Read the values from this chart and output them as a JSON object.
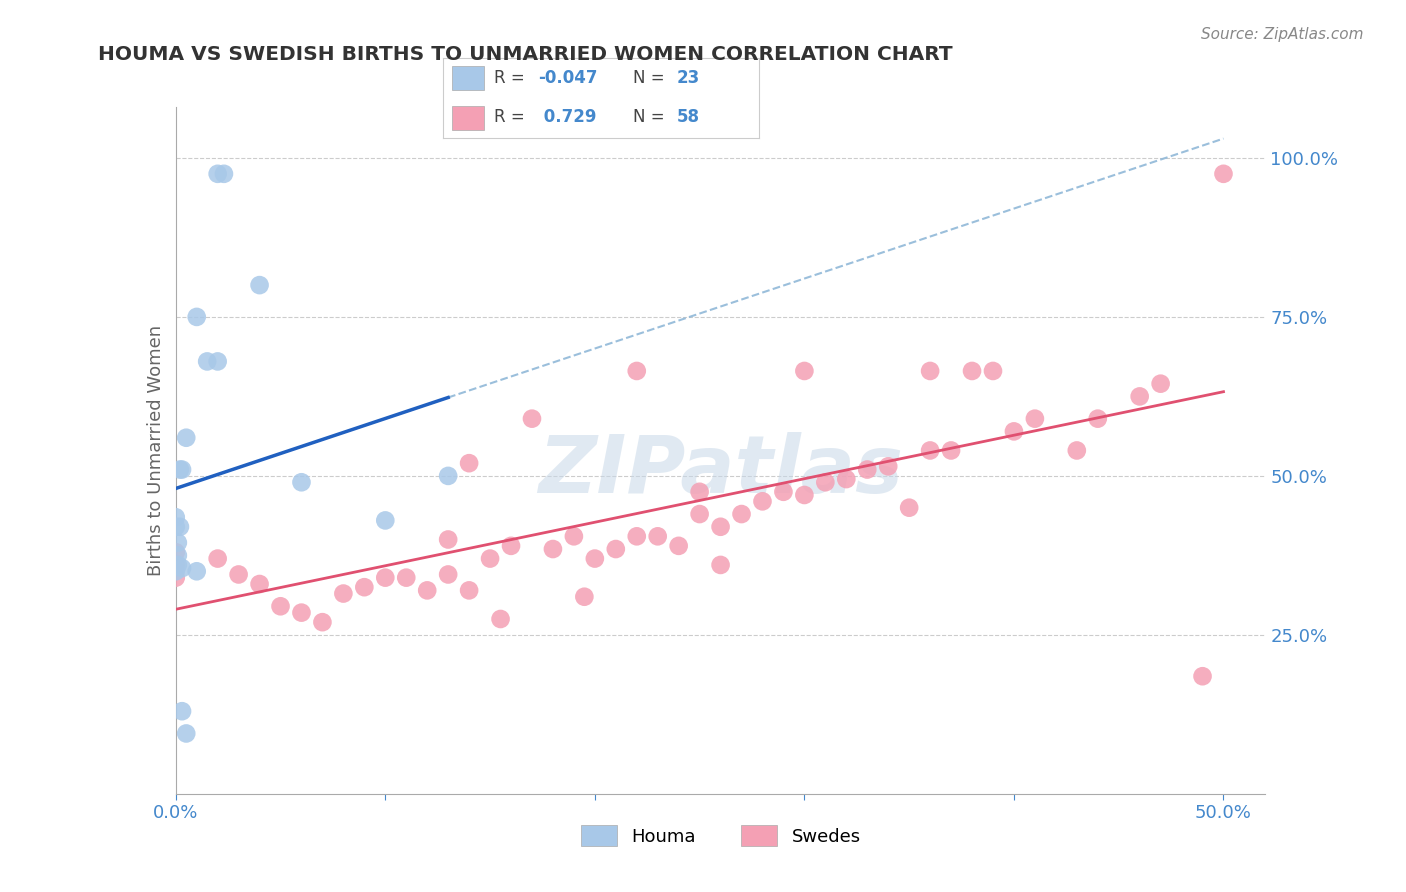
{
  "title": "HOUMA VS SWEDISH BIRTHS TO UNMARRIED WOMEN CORRELATION CHART",
  "source": "Source: ZipAtlas.com",
  "ylabel": "Births to Unmarried Women",
  "xlim": [
    0.0,
    0.52
  ],
  "ylim": [
    0.0,
    1.08
  ],
  "xtick_vals": [
    0.0,
    0.1,
    0.2,
    0.3,
    0.4,
    0.5
  ],
  "xtick_labels": [
    "0.0%",
    "",
    "",
    "",
    "",
    "50.0%"
  ],
  "ytick_right_vals": [
    0.25,
    0.5,
    0.75,
    1.0
  ],
  "ytick_right_labels": [
    "25.0%",
    "50.0%",
    "75.0%",
    "100.0%"
  ],
  "legend_r1": "-0.047",
  "legend_n1": "23",
  "legend_r2": "0.729",
  "legend_n2": "58",
  "houma_color": "#a8c8e8",
  "swedes_color": "#f4a0b4",
  "line_blue": "#2060c0",
  "line_pink": "#e05070",
  "dashed_blue_color": "#90b8d8",
  "background": "#ffffff",
  "grid_color": "#cccccc",
  "title_color": "#333333",
  "axis_label_color": "#4488cc",
  "watermark": "ZIPatlas",
  "houma_x": [
    0.02,
    0.023,
    0.01,
    0.015,
    0.02,
    0.005,
    0.003,
    0.002,
    0.002,
    0.001,
    0.001,
    0.001,
    0.003,
    0.01,
    0.0,
    0.0,
    0.0,
    0.003,
    0.005,
    0.06,
    0.1,
    0.13,
    0.04
  ],
  "houma_y": [
    0.975,
    0.975,
    0.75,
    0.68,
    0.68,
    0.56,
    0.51,
    0.51,
    0.42,
    0.395,
    0.375,
    0.36,
    0.355,
    0.35,
    0.435,
    0.42,
    0.35,
    0.13,
    0.095,
    0.49,
    0.43,
    0.5,
    0.8
  ],
  "swedes_x": [
    0.3,
    0.13,
    0.22,
    0.36,
    0.14,
    0.38,
    0.25,
    0.0,
    0.0,
    0.0,
    0.02,
    0.03,
    0.04,
    0.05,
    0.06,
    0.07,
    0.08,
    0.09,
    0.1,
    0.11,
    0.12,
    0.13,
    0.14,
    0.15,
    0.16,
    0.17,
    0.18,
    0.19,
    0.2,
    0.21,
    0.22,
    0.23,
    0.24,
    0.25,
    0.26,
    0.27,
    0.28,
    0.29,
    0.3,
    0.31,
    0.32,
    0.33,
    0.34,
    0.36,
    0.37,
    0.39,
    0.4,
    0.41,
    0.43,
    0.44,
    0.46,
    0.47,
    0.49,
    0.5,
    0.155,
    0.195,
    0.26,
    0.35
  ],
  "swedes_y": [
    0.665,
    0.4,
    0.665,
    0.665,
    0.52,
    0.665,
    0.475,
    0.38,
    0.36,
    0.34,
    0.37,
    0.345,
    0.33,
    0.295,
    0.285,
    0.27,
    0.315,
    0.325,
    0.34,
    0.34,
    0.32,
    0.345,
    0.32,
    0.37,
    0.39,
    0.59,
    0.385,
    0.405,
    0.37,
    0.385,
    0.405,
    0.405,
    0.39,
    0.44,
    0.42,
    0.44,
    0.46,
    0.475,
    0.47,
    0.49,
    0.495,
    0.51,
    0.515,
    0.54,
    0.54,
    0.665,
    0.57,
    0.59,
    0.54,
    0.59,
    0.625,
    0.645,
    0.185,
    0.975,
    0.275,
    0.31,
    0.36,
    0.45
  ]
}
